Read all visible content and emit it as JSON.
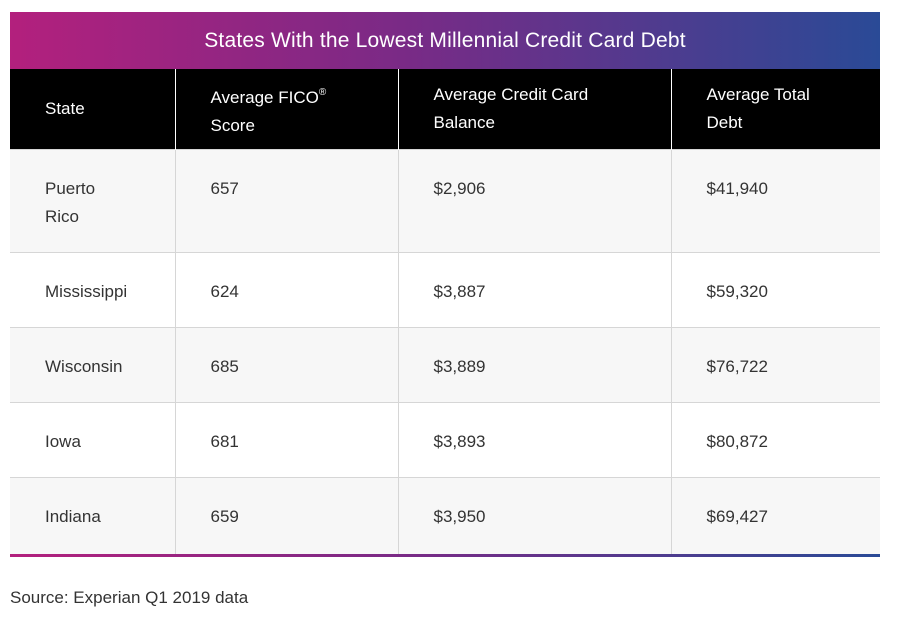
{
  "title": "States With the Lowest Millennial Credit Card Debt",
  "headers": {
    "state": "State",
    "fico_main": "Average FICO",
    "fico_reg": "®",
    "fico_line2": "Score",
    "balance": "Average Credit Card Balance",
    "total_debt": "Average Total Debt"
  },
  "rows": [
    {
      "state": "Puerto Rico",
      "fico": "657",
      "balance": "$2,906",
      "total_debt": "$41,940"
    },
    {
      "state": "Mississippi",
      "fico": "624",
      "balance": "$3,887",
      "total_debt": "$59,320"
    },
    {
      "state": "Wisconsin",
      "fico": "685",
      "balance": "$3,889",
      "total_debt": "$76,722"
    },
    {
      "state": "Iowa",
      "fico": "681",
      "balance": "$3,893",
      "total_debt": "$80,872"
    },
    {
      "state": "Indiana",
      "fico": "659",
      "balance": "$3,950",
      "total_debt": "$69,427"
    }
  ],
  "source": "Source: Experian Q1 2019 data",
  "colors": {
    "gradient_start": "#b3207d",
    "gradient_mid": "#7a2a86",
    "gradient_end": "#2a4a96",
    "header_bg": "#000000",
    "stripe_bg": "#f7f7f7"
  }
}
